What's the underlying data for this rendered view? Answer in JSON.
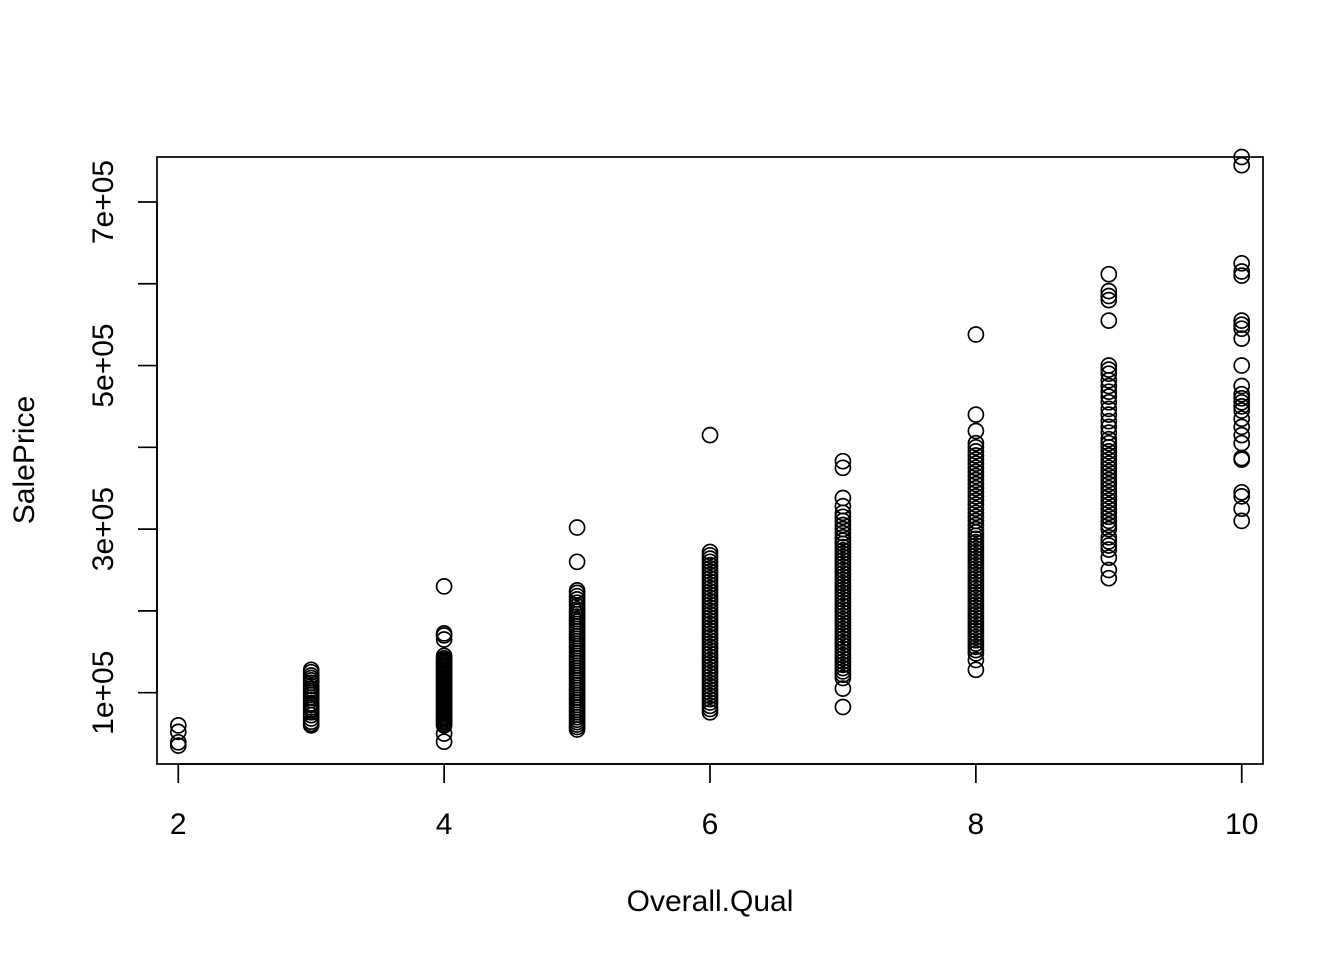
{
  "chart_data": {
    "type": "scatter",
    "title": "",
    "xlabel": "Overall.Qual",
    "ylabel": "SalePrice",
    "xlim": [
      1.84,
      10.16
    ],
    "ylim": [
      12789,
      755000
    ],
    "x_ticks": [
      2,
      4,
      6,
      8,
      10
    ],
    "x_tick_labels": [
      "2",
      "4",
      "6",
      "8",
      "10"
    ],
    "y_ticks": [
      100000,
      200000,
      300000,
      400000,
      500000,
      600000,
      700000
    ],
    "y_tick_labels": [
      "1e+05",
      "",
      "3e+05",
      "",
      "5e+05",
      "",
      "7e+05"
    ],
    "grid": false,
    "legend": "none",
    "marker_color": "#000000",
    "groups": [
      {
        "x": 2,
        "y": [
          35311,
          39300,
          52000,
          60000
        ]
      },
      {
        "x": 3,
        "y": [
          60000,
          62000,
          64500,
          68400,
          72500,
          76000,
          79000,
          82000,
          85000,
          87000,
          91000,
          94000,
          97000,
          99500,
          102000,
          105000,
          108000,
          112000,
          115000,
          118000,
          121000,
          125000,
          128000
        ]
      },
      {
        "x": 4,
        "y": [
          40000,
          50000,
          60000,
          62000,
          64000,
          66000,
          68000,
          70000,
          72000,
          74000,
          76000,
          78000,
          80000,
          82000,
          84000,
          86000,
          88000,
          90000,
          92000,
          94000,
          96000,
          98000,
          100000,
          102000,
          104000,
          106000,
          108000,
          110000,
          112000,
          114000,
          116000,
          118000,
          120000,
          122000,
          124000,
          126000,
          128000,
          130000,
          132000,
          134000,
          136000,
          138000,
          140000,
          142000,
          145000,
          165000,
          170000,
          172500,
          230000
        ]
      },
      {
        "x": 5,
        "y": [
          55000,
          58000,
          61000,
          64000,
          67000,
          70000,
          73000,
          76000,
          79000,
          82000,
          85000,
          88000,
          91000,
          94000,
          97000,
          100000,
          103000,
          106000,
          109000,
          112000,
          115000,
          118000,
          121000,
          124000,
          127000,
          130000,
          133000,
          136000,
          139000,
          142000,
          145000,
          148000,
          151000,
          154000,
          157000,
          160000,
          163000,
          166000,
          169000,
          172000,
          175000,
          178000,
          181000,
          184000,
          187000,
          190000,
          193000,
          196000,
          199000,
          202000,
          206000,
          210000,
          214000,
          218000,
          222000,
          225000,
          260000,
          302000
        ]
      },
      {
        "x": 6,
        "y": [
          76000,
          80000,
          84000,
          88000,
          92000,
          96000,
          100000,
          104000,
          108000,
          112000,
          116000,
          120000,
          124000,
          128000,
          132000,
          136000,
          140000,
          144000,
          148000,
          152000,
          156000,
          160000,
          164000,
          168000,
          172000,
          176000,
          180000,
          184000,
          188000,
          192000,
          196000,
          200000,
          204000,
          208000,
          212000,
          216000,
          220000,
          224000,
          228000,
          232000,
          236000,
          240000,
          244000,
          248000,
          252000,
          256000,
          260000,
          264000,
          268000,
          272000,
          415000
        ]
      },
      {
        "x": 7,
        "y": [
          82500,
          105000,
          118000,
          122000,
          126000,
          130000,
          134000,
          138000,
          142000,
          146000,
          150000,
          154000,
          158000,
          162000,
          166000,
          170000,
          174000,
          178000,
          182000,
          186000,
          190000,
          194000,
          198000,
          202000,
          206000,
          210000,
          214000,
          218000,
          222000,
          226000,
          230000,
          234000,
          238000,
          242000,
          246000,
          250000,
          254000,
          258000,
          262000,
          266000,
          270000,
          274000,
          278000,
          282000,
          286000,
          290000,
          295000,
          300000,
          305000,
          310000,
          315000,
          320000,
          328000,
          338000,
          375000,
          383000
        ]
      },
      {
        "x": 8,
        "y": [
          128000,
          140000,
          148000,
          152000,
          156000,
          160000,
          164000,
          168000,
          172000,
          176000,
          180000,
          184000,
          188000,
          192000,
          196000,
          200000,
          204000,
          208000,
          212000,
          216000,
          220000,
          224000,
          228000,
          232000,
          236000,
          240000,
          244000,
          248000,
          252000,
          256000,
          260000,
          264000,
          268000,
          272000,
          276000,
          280000,
          284000,
          288000,
          292000,
          296000,
          300000,
          305000,
          310000,
          315000,
          320000,
          325000,
          330000,
          335000,
          340000,
          345000,
          350000,
          355000,
          360000,
          365000,
          370000,
          375000,
          380000,
          385000,
          390000,
          395000,
          400000,
          405000,
          420000,
          440000,
          538000
        ]
      },
      {
        "x": 9,
        "y": [
          240000,
          250000,
          265000,
          275000,
          280000,
          285000,
          290000,
          300000,
          305000,
          310000,
          315000,
          320000,
          325000,
          330000,
          335000,
          340000,
          345000,
          350000,
          355000,
          360000,
          365000,
          370000,
          375000,
          380000,
          385000,
          390000,
          395000,
          400000,
          405000,
          410000,
          418000,
          425000,
          432000,
          440000,
          447000,
          455000,
          462000,
          468000,
          475000,
          482000,
          490000,
          495000,
          500000,
          555000,
          580000,
          585000,
          591000,
          611657
        ]
      },
      {
        "x": 10,
        "y": [
          310000,
          325000,
          340000,
          345000,
          385000,
          387000,
          405000,
          415000,
          425000,
          435000,
          445000,
          450000,
          455000,
          460000,
          465000,
          475000,
          500000,
          533000,
          545000,
          550000,
          555000,
          610000,
          615000,
          625000,
          745000,
          755000
        ]
      }
    ]
  }
}
